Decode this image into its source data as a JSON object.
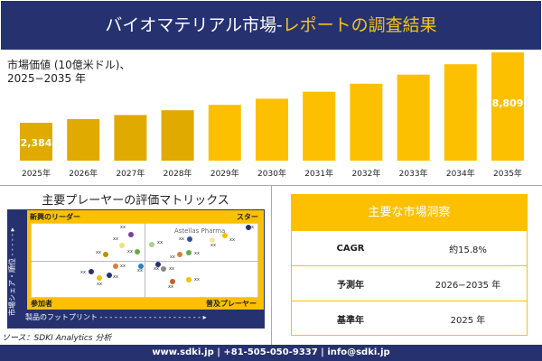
{
  "header": {
    "title_main": "バイオマテリアル市場-",
    "title_accent": "レポートの調査結果"
  },
  "chart_data": {
    "type": "bar",
    "title": "市場価値 (10億米ドル)、",
    "subtitle": "2025−2035 年",
    "categories": [
      "2025年",
      "2026年",
      "2027年",
      "2028年",
      "2029年",
      "2030年",
      "2031年",
      "2032年",
      "2033年",
      "2034年",
      "2035年"
    ],
    "values": [
      2384,
      2717,
      3096,
      3528,
      4021,
      4582,
      5222,
      5951,
      6781,
      7728,
      8809
    ],
    "data_labels": {
      "first": "2,384",
      "last": "8,809"
    },
    "color": "#fcc000"
  },
  "matrix": {
    "title": "主要プレーヤーの評価マトリックス",
    "quadrants": {
      "top_left": "新興のリーダー",
      "top_right": "スター",
      "bottom_left": "参加者",
      "bottom_right": "普及プレーヤー"
    },
    "x_axis": "製品のフットプリント",
    "y_axis": "市場シェア・順位",
    "highlight": "Astellas Pharma",
    "point_label": "xx"
  },
  "source": "ソース：SDKI Analytics 分析",
  "insights": {
    "title": "主要な市場洞察",
    "rows": [
      {
        "k": "CAGR",
        "v": "約15.8%"
      },
      {
        "k": "予測年",
        "v": "2026−2035 年"
      },
      {
        "k": "基準年",
        "v": "2025 年"
      }
    ]
  },
  "footer": "www.sdki.jp | +81-505-050-9337 | info@sdki.jp",
  "colors": {
    "navy": "#263270",
    "accent": "#fcc000"
  }
}
